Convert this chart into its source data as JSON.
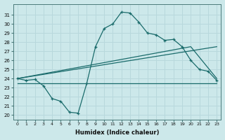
{
  "xlabel": "Humidex (Indice chaleur)",
  "bg_color": "#cce8ea",
  "grid_color": "#b8d8dc",
  "line_color": "#1a6b6b",
  "xlim": [
    -0.5,
    23.5
  ],
  "ylim": [
    19.5,
    32.2
  ],
  "yticks": [
    20,
    21,
    22,
    23,
    24,
    25,
    26,
    27,
    28,
    29,
    30,
    31
  ],
  "xticks": [
    0,
    1,
    2,
    3,
    4,
    5,
    6,
    7,
    8,
    9,
    10,
    11,
    12,
    13,
    14,
    15,
    16,
    17,
    18,
    19,
    20,
    21,
    22,
    23
  ],
  "series1_x": [
    0,
    1,
    2,
    3,
    4,
    5,
    6,
    7,
    8,
    9,
    10,
    11,
    12,
    13,
    14,
    15,
    16,
    17,
    18,
    19,
    20,
    21,
    22,
    23
  ],
  "series1_y": [
    24.0,
    23.8,
    23.9,
    23.2,
    21.8,
    21.5,
    20.3,
    20.2,
    23.5,
    27.5,
    29.5,
    30.0,
    31.3,
    31.2,
    30.2,
    29.0,
    28.8,
    28.2,
    28.3,
    27.5,
    26.0,
    25.0,
    24.8,
    23.8
  ],
  "series2_x": [
    0,
    23
  ],
  "series2_y": [
    24.0,
    27.5
  ],
  "series3_x": [
    0,
    20,
    23
  ],
  "series3_y": [
    24.0,
    27.5,
    24.0
  ],
  "series4_x": [
    0,
    1,
    2,
    3,
    4,
    5,
    6,
    7,
    8,
    9,
    10,
    11,
    12,
    13,
    14,
    15,
    16,
    17,
    18,
    19,
    20,
    21,
    22,
    23
  ],
  "series4_y": [
    23.5,
    23.5,
    23.5,
    23.5,
    23.5,
    23.5,
    23.5,
    23.5,
    23.5,
    23.5,
    23.5,
    23.5,
    23.5,
    23.5,
    23.5,
    23.5,
    23.5,
    23.5,
    23.5,
    23.5,
    23.5,
    23.5,
    23.5,
    23.5
  ]
}
